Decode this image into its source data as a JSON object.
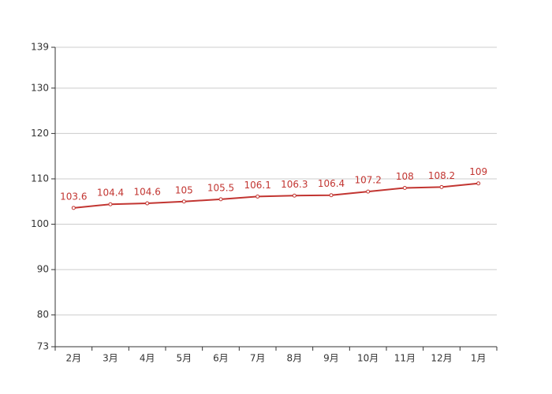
{
  "chart_data": {
    "type": "line",
    "categories": [
      "2月",
      "3月",
      "4月",
      "5月",
      "6月",
      "7月",
      "8月",
      "9月",
      "10月",
      "11月",
      "12月",
      "1月"
    ],
    "series": [
      {
        "color": "#c23531",
        "values": [
          103.6,
          104.4,
          104.6,
          105,
          105.5,
          106.1,
          106.3,
          106.4,
          107.2,
          108,
          108.2,
          109
        ]
      }
    ],
    "ylim": [
      73,
      139
    ],
    "yticks": [
      73,
      80,
      90,
      100,
      110,
      120,
      130,
      139
    ],
    "grid": true
  }
}
